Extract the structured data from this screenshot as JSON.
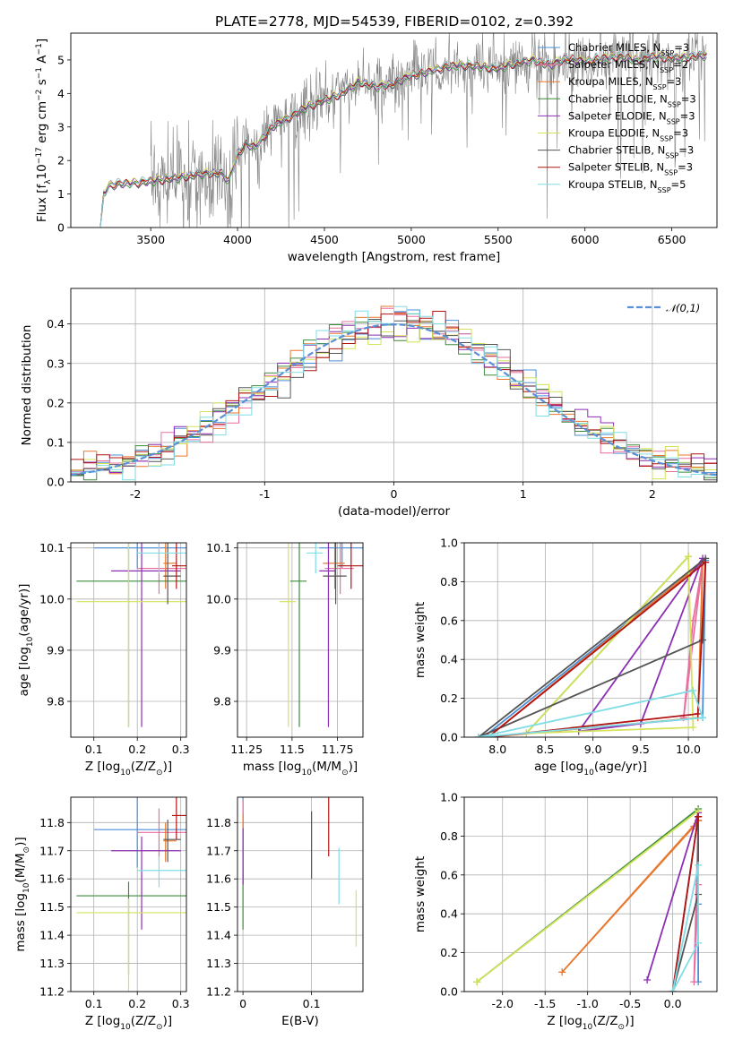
{
  "figure_title": "PLATE=2778, MJD=54539, FIBERID=0102, z=0.392",
  "colors": {
    "Chabrier MILES": "#4a8fd9",
    "Salpeter MILES": "#e96fa0",
    "Kroupa MILES": "#e8772e",
    "Chabrier ELODIE": "#3c8c3c",
    "Salpeter ELODIE": "#8c2fb4",
    "Kroupa ELODIE": "#d4e35a",
    "Chabrier STELIB": "#555555",
    "Salpeter STELIB": "#b01414",
    "Kroupa STELIB": "#7fdde6",
    "data": "#808080",
    "normal": "#5b8fd6",
    "p5_fit_yellowgreen": "#9acd32"
  },
  "chart_data": [
    {
      "id": "spectrum",
      "type": "line",
      "title": "PLATE=2778, MJD=54539, FIBERID=0102, z=0.392",
      "xlabel": "wavelength [Angstrom, rest frame]",
      "ylabel_parts": [
        "Flux [f",
        "λ",
        "10",
        "−17",
        " erg cm",
        "−2",
        " s",
        "−1",
        " A",
        "−1",
        "]"
      ],
      "xlim": [
        3040,
        6760
      ],
      "ylim": [
        0,
        5.8
      ],
      "xticks": [
        3500,
        4000,
        4500,
        5000,
        5500,
        6000,
        6500
      ],
      "yticks": [
        0,
        1,
        2,
        3,
        4,
        5
      ],
      "legend": [
        {
          "model": "Chabrier MILES",
          "n": "3"
        },
        {
          "model": "Salpeter MILES",
          "n": "2"
        },
        {
          "model": "Kroupa MILES",
          "n": "3"
        },
        {
          "model": "Chabrier ELODIE",
          "n": "3"
        },
        {
          "model": "Salpeter ELODIE",
          "n": "3"
        },
        {
          "model": "Kroupa ELODIE",
          "n": "3"
        },
        {
          "model": "Chabrier STELIB",
          "n": "3"
        },
        {
          "model": "Salpeter STELIB",
          "n": "3"
        },
        {
          "model": "Kroupa STELIB",
          "n": "5"
        }
      ],
      "legend_prefix": "N",
      "legend_sub": "SSP",
      "legend_eq": "=",
      "legend_placement": "upper right",
      "model_continuum": {
        "x": [
          3210,
          3230,
          3260,
          3300,
          3400,
          3500,
          3600,
          3700,
          3780,
          3850,
          3900,
          3950,
          4000,
          4050,
          4100,
          4200,
          4300,
          4400,
          4500,
          4600,
          4700,
          4800,
          4900,
          5000,
          5100,
          5200,
          5300,
          5400,
          5500,
          5600,
          5700,
          5800,
          5900,
          6000,
          6100,
          6200,
          6300,
          6400,
          6500,
          6600,
          6700
        ],
        "y": [
          0,
          1.0,
          1.25,
          1.3,
          1.33,
          1.38,
          1.45,
          1.52,
          1.6,
          1.62,
          1.65,
          1.4,
          2.2,
          2.5,
          2.4,
          3.0,
          3.3,
          3.6,
          3.8,
          4.0,
          4.35,
          4.2,
          4.3,
          4.55,
          4.65,
          4.8,
          4.85,
          4.8,
          4.75,
          4.9,
          5.0,
          4.85,
          5.05,
          4.95,
          5.05,
          5.1,
          5.0,
          5.1,
          5.05,
          5.1,
          5.15
        ]
      },
      "data_note": "observed spectrum (grey), noisy, starts at 3500 A"
    },
    {
      "id": "residuals",
      "type": "histogram",
      "xlabel": "(data-model)/error",
      "ylabel": "Normed distribution",
      "xlim": [
        -2.5,
        2.5
      ],
      "ylim": [
        0,
        0.49
      ],
      "xticks": [
        -2,
        -1,
        0,
        1,
        2
      ],
      "yticks": [
        0.0,
        0.1,
        0.2,
        0.3,
        0.4
      ],
      "bin_width": 0.1,
      "legend": "𝒩(0,1)",
      "legend_placement": "upper right"
    },
    {
      "id": "age_vs_Z",
      "type": "scatter",
      "xlabel_parts": [
        "Z [log",
        "10",
        "(Z/Z",
        "⊙",
        ")]"
      ],
      "ylabel_parts": [
        "age  [log",
        "10",
        "(age/yr)]"
      ],
      "xlim": [
        0.047,
        0.313
      ],
      "ylim": [
        9.73,
        10.11
      ],
      "xticks": [
        0.1,
        0.2,
        0.3
      ],
      "yticks": [
        9.8,
        9.9,
        10.0,
        10.1
      ]
    },
    {
      "id": "age_vs_mass",
      "type": "scatter",
      "xlabel_parts": [
        "mass [log",
        "10",
        "(M/M",
        "⊙",
        ")]"
      ],
      "xlim": [
        11.2,
        11.89
      ],
      "ylim": [
        9.73,
        10.11
      ],
      "xticks": [
        11.25,
        11.5,
        11.75
      ],
      "yticks": [
        9.8,
        9.9,
        10.0,
        10.1
      ]
    },
    {
      "id": "weight_vs_age",
      "type": "line",
      "xlabel_parts": [
        "age  [log",
        "10",
        "(age/yr)]"
      ],
      "ylabel": "mass weight",
      "xlim": [
        7.65,
        10.3
      ],
      "ylim": [
        0,
        1
      ],
      "xticks": [
        8.0,
        8.5,
        9.0,
        9.5,
        10.0
      ],
      "yticks": [
        0.0,
        0.2,
        0.4,
        0.6,
        0.8,
        1.0
      ]
    },
    {
      "id": "mass_vs_Z",
      "type": "scatter",
      "xlabel_parts": [
        "Z [log",
        "10",
        "(Z/Z",
        "⊙",
        ")]"
      ],
      "ylabel_parts": [
        "mass [log",
        "10",
        "(M/M",
        "⊙",
        ")]"
      ],
      "xlim": [
        0.047,
        0.313
      ],
      "ylim": [
        11.2,
        11.89
      ],
      "xticks": [
        0.1,
        0.2,
        0.3
      ],
      "yticks": [
        11.2,
        11.3,
        11.4,
        11.5,
        11.6,
        11.7,
        11.8
      ]
    },
    {
      "id": "mass_vs_EBV",
      "type": "scatter",
      "xlabel": "E(B-V)",
      "xlim": [
        -0.008,
        0.175
      ],
      "ylim": [
        11.2,
        11.89
      ],
      "xticks": [
        0.0,
        0.1
      ],
      "yticks": [
        11.2,
        11.3,
        11.4,
        11.5,
        11.6,
        11.7,
        11.8
      ]
    },
    {
      "id": "weight_vs_Z",
      "type": "line",
      "xlabel_parts": [
        "Z [log",
        "10",
        "(Z/Z",
        "⊙",
        ")]"
      ],
      "ylabel": "mass weight",
      "xlim": [
        -2.45,
        0.52
      ],
      "ylim": [
        0,
        1
      ],
      "xticks": [
        -2.0,
        -1.5,
        -1.0,
        -0.5,
        0.0
      ],
      "yticks": [
        0.0,
        0.2,
        0.4,
        0.6,
        0.8,
        1.0
      ]
    }
  ],
  "fits": [
    {
      "model": "Chabrier MILES",
      "Z": [
        0.1,
        0.3
      ],
      "age": [
        10.1,
        10.1
      ],
      "mass": [
        11.7,
        11.85
      ],
      "ebv": [
        0.0,
        0.0
      ],
      "ages": [
        7.85,
        10.15,
        10.18
      ],
      "weights": [
        0.0,
        0.1,
        0.91
      ],
      "logZ": [
        0.3,
        0.3,
        0.3
      ],
      "zweights": [
        0.05,
        0.45,
        0.88
      ]
    },
    {
      "model": "Salpeter MILES",
      "Z": [
        0.2,
        0.3
      ],
      "age": [
        10.05,
        10.07
      ],
      "mass": [
        11.73,
        11.8
      ],
      "ebv": [
        0.0,
        0.0
      ],
      "ages": [
        9.95,
        10.05,
        10.15
      ],
      "weights": [
        0.1,
        0.6,
        0.9
      ],
      "logZ": [
        0.25,
        0.3,
        0.3
      ],
      "zweights": [
        0.05,
        0.55,
        0.88
      ]
    },
    {
      "model": "Kroupa MILES",
      "Z": [
        0.26,
        0.27
      ],
      "age": [
        10.06,
        10.08
      ],
      "mass": [
        11.72,
        11.75
      ],
      "ebv": [
        0.0,
        0.0
      ],
      "ages": [
        7.9,
        10.1,
        10.15
      ],
      "weights": [
        0.0,
        0.1,
        0.9
      ],
      "logZ": [
        -1.3,
        0.25,
        0.3
      ],
      "zweights": [
        0.1,
        0.85,
        0.88
      ]
    },
    {
      "model": "Chabrier ELODIE",
      "Z": [
        0.06,
        0.3
      ],
      "age": [
        10.035,
        10.035
      ],
      "mass": [
        11.54,
        11.54
      ],
      "ebv": [
        0.0,
        0.0
      ],
      "ages": [
        8.3,
        10.0
      ],
      "weights": [
        0.02,
        0.93
      ],
      "logZ": [
        -2.3,
        0.3
      ],
      "zweights": [
        0.05,
        0.94
      ]
    },
    {
      "model": "Salpeter ELODIE",
      "Z": [
        0.14,
        0.28
      ],
      "age": [
        10.04,
        10.07
      ],
      "mass": [
        11.7,
        11.7
      ],
      "ebv": [
        0.0,
        0.0
      ],
      "ages": [
        8.85,
        9.5,
        10.15
      ],
      "weights": [
        0.03,
        0.07,
        0.92
      ],
      "logZ": [
        -0.3,
        0.3
      ],
      "zweights": [
        0.06,
        0.92
      ]
    },
    {
      "model": "Kroupa ELODIE",
      "Z": [
        0.06,
        0.3
      ],
      "age": [
        9.995,
        9.995
      ],
      "mass": [
        11.48,
        11.48
      ],
      "ebv": [
        0.165,
        0.165
      ],
      "ages": [
        8.3,
        10.0,
        10.05
      ],
      "weights": [
        0.02,
        0.93,
        0.05
      ],
      "logZ": [
        -2.3,
        0.3
      ],
      "zweights": [
        0.05,
        0.93
      ]
    },
    {
      "model": "Chabrier STELIB",
      "Z": [
        0.26,
        0.28
      ],
      "age": [
        10.03,
        10.06
      ],
      "mass": [
        11.72,
        11.76
      ],
      "ebv": [
        0.1,
        0.1
      ],
      "ages": [
        7.8,
        10.15,
        10.18
      ],
      "weights": [
        0.0,
        0.5,
        0.92
      ],
      "logZ": [
        0.0,
        0.3,
        0.3
      ],
      "zweights": [
        0.0,
        0.5,
        0.9
      ]
    },
    {
      "model": "Salpeter STELIB",
      "Z": [
        0.28,
        0.3
      ],
      "age": [
        10.06,
        10.07
      ],
      "mass": [
        11.8,
        11.85
      ],
      "ebv": [
        0.125,
        0.125
      ],
      "ages": [
        7.9,
        10.1,
        10.18
      ],
      "weights": [
        0.0,
        0.12,
        0.9
      ],
      "logZ": [
        0.0,
        0.3,
        0.3
      ],
      "zweights": [
        0.0,
        0.9,
        0.9
      ]
    },
    {
      "model": "Kroupa STELIB",
      "Z": [
        0.2,
        0.3
      ],
      "age": [
        10.09,
        10.09
      ],
      "mass": [
        11.63,
        11.63
      ],
      "ebv": [
        0.14,
        0.14
      ],
      "ages": [
        7.8,
        10.05,
        10.15
      ],
      "weights": [
        0.0,
        0.24,
        0.1
      ],
      "logZ": [
        0.0,
        0.3,
        0.3
      ],
      "zweights": [
        0.0,
        0.65,
        0.25
      ]
    }
  ]
}
